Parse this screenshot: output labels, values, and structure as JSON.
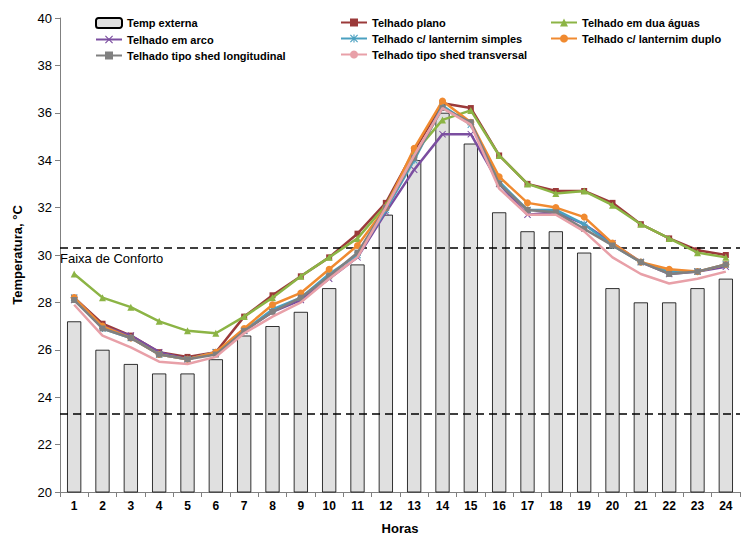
{
  "chart_data": {
    "type": "line",
    "x_label": "Horas",
    "y_label": "Temperatura, °C",
    "categories": [
      "1",
      "2",
      "3",
      "4",
      "5",
      "6",
      "7",
      "8",
      "9",
      "10",
      "11",
      "12",
      "13",
      "14",
      "15",
      "16",
      "17",
      "18",
      "19",
      "20",
      "21",
      "22",
      "23",
      "24"
    ],
    "series": [
      {
        "name": "Temp externa",
        "type": "bar",
        "color": "#e0e0e0",
        "values": [
          27.2,
          26.0,
          25.4,
          25.0,
          25.0,
          25.6,
          26.6,
          27.0,
          27.6,
          28.6,
          29.6,
          31.7,
          34.0,
          36.0,
          34.7,
          31.8,
          31.0,
          31.0,
          30.1,
          28.6,
          28.0,
          28.0,
          28.6,
          29.0
        ]
      },
      {
        "name": "Telhado plano",
        "type": "line",
        "color": "#9b3a3a",
        "marker": "square",
        "values": [
          28.2,
          27.1,
          26.6,
          25.9,
          25.7,
          25.9,
          27.4,
          28.3,
          29.1,
          29.9,
          30.9,
          32.2,
          34.4,
          36.4,
          36.2,
          34.2,
          33.0,
          32.7,
          32.7,
          32.2,
          31.3,
          30.7,
          30.2,
          30.0
        ]
      },
      {
        "name": "Telhado em dua águas",
        "type": "line",
        "color": "#8cb445",
        "marker": "triangle",
        "values": [
          29.2,
          28.2,
          27.8,
          27.2,
          26.8,
          26.7,
          27.4,
          28.2,
          29.1,
          29.9,
          30.7,
          32.1,
          34.3,
          35.7,
          36.1,
          34.2,
          33.0,
          32.6,
          32.7,
          32.1,
          31.3,
          30.7,
          30.1,
          29.9
        ]
      },
      {
        "name": "Telhado em arco",
        "type": "line",
        "color": "#7b4ea0",
        "marker": "x",
        "values": [
          28.1,
          27.0,
          26.6,
          25.9,
          25.6,
          25.9,
          26.8,
          27.6,
          28.1,
          29.0,
          29.9,
          31.8,
          33.6,
          35.1,
          35.1,
          33.0,
          31.7,
          31.8,
          31.3,
          30.5,
          29.7,
          29.2,
          29.3,
          29.5
        ]
      },
      {
        "name": "Telhado c/ lanternim simples",
        "type": "line",
        "color": "#4aa0c0",
        "marker": "asterisk",
        "values": [
          28.2,
          26.9,
          26.5,
          25.8,
          25.6,
          25.9,
          26.8,
          27.7,
          28.2,
          29.2,
          30.0,
          31.9,
          34.0,
          36.3,
          35.5,
          33.1,
          31.9,
          31.9,
          31.3,
          30.4,
          29.7,
          29.3,
          29.3,
          29.6
        ]
      },
      {
        "name": "Telhado c/ lanternim duplo",
        "type": "line",
        "color": "#f08a30",
        "marker": "circle",
        "values": [
          28.2,
          27.0,
          26.5,
          25.8,
          25.6,
          25.9,
          26.9,
          27.9,
          28.4,
          29.4,
          30.4,
          32.0,
          34.5,
          36.5,
          35.6,
          33.3,
          32.2,
          32.0,
          31.6,
          30.5,
          29.7,
          29.4,
          29.3,
          29.6
        ]
      },
      {
        "name": "Telhado tipo shed longitudinal",
        "type": "line",
        "color": "#808080",
        "marker": "square",
        "values": [
          28.1,
          26.9,
          26.5,
          25.8,
          25.6,
          25.8,
          26.8,
          27.6,
          28.2,
          29.1,
          30.1,
          32.0,
          34.1,
          36.2,
          35.6,
          33.0,
          31.9,
          31.8,
          31.1,
          30.4,
          29.7,
          29.2,
          29.3,
          29.6
        ]
      },
      {
        "name": "Telhado tipo shed transversal",
        "type": "line",
        "color": "#e8a0a8",
        "marker": "none",
        "values": [
          27.9,
          26.6,
          26.1,
          25.5,
          25.4,
          25.7,
          26.7,
          27.4,
          28.0,
          29.0,
          29.9,
          32.0,
          34.2,
          36.2,
          35.5,
          32.8,
          31.7,
          31.7,
          31.0,
          29.9,
          29.2,
          28.8,
          29.0,
          29.3
        ]
      }
    ],
    "reference_lines": [
      30.3,
      23.3
    ],
    "annotation": "Faixa de Conforto",
    "ylim": [
      20,
      40
    ],
    "yticks": [
      20,
      22,
      24,
      26,
      28,
      30,
      32,
      34,
      36,
      38,
      40
    ],
    "grid": false,
    "legend": "top"
  }
}
